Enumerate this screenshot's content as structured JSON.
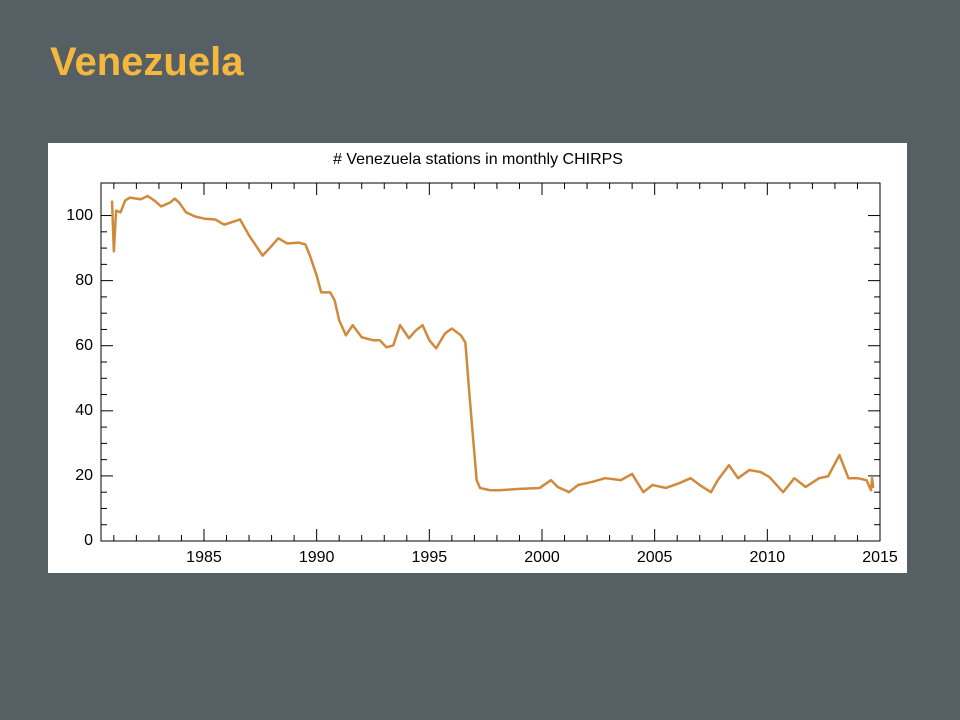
{
  "title": "Venezuela",
  "chart_data": {
    "type": "line",
    "title": "# Venezuela stations in monthly CHIRPS",
    "xlim": [
      1980.43,
      2015
    ],
    "xticks": [
      1985,
      1990,
      1995,
      2000,
      2005,
      2010,
      2015
    ],
    "ylim": [
      0,
      110
    ],
    "yticks": [
      0,
      20,
      40,
      60,
      80,
      100
    ],
    "grid": false,
    "series": [
      {
        "name": null,
        "color": "#d08a3c",
        "x": [
          1980.92,
          1981.0,
          1981.1,
          1981.3,
          1981.5,
          1981.7,
          1982.2,
          1982.5,
          1982.8,
          1983.1,
          1983.5,
          1983.7,
          1983.9,
          1984.2,
          1984.6,
          1985.05,
          1985.5,
          1985.9,
          1986.6,
          1987.0,
          1987.6,
          1987.9,
          1988.3,
          1988.7,
          1989.2,
          1989.5,
          1989.7,
          1990.0,
          1990.2,
          1990.6,
          1990.8,
          1991.0,
          1991.3,
          1991.6,
          1992.0,
          1992.5,
          1992.8,
          1993.1,
          1993.4,
          1993.7,
          1994.1,
          1994.4,
          1994.7,
          1995.0,
          1995.3,
          1995.7,
          1996.0,
          1996.4,
          1996.6,
          1996.8,
          1997.1,
          1997.25,
          1997.7,
          1998.1,
          1999.0,
          1999.9,
          2000.4,
          2000.7,
          2001.2,
          2001.6,
          2002.2,
          2002.8,
          2003.5,
          2004.0,
          2004.5,
          2004.9,
          2005.5,
          2006.1,
          2006.6,
          2007.0,
          2007.5,
          2007.8,
          2008.3,
          2008.7,
          2009.2,
          2009.7,
          2010.1,
          2010.7,
          2011.2,
          2011.7,
          2012.3,
          2012.7,
          2013.2,
          2013.6,
          2014.0,
          2014.4,
          2014.6,
          2014.65,
          2014.7
        ],
        "values": [
          104.6,
          89,
          101.5,
          101,
          104.6,
          105.5,
          105,
          106,
          104.6,
          102.8,
          104,
          105.2,
          104,
          101,
          99.7,
          99,
          98.8,
          97.2,
          98.8,
          93.9,
          87.7,
          89.9,
          93,
          91.4,
          91.7,
          91.1,
          87.7,
          81.6,
          76.4,
          76.4,
          73.9,
          67.8,
          63.2,
          66.3,
          62.6,
          61.7,
          61.7,
          59.5,
          60.1,
          66.3,
          62.3,
          64.7,
          66.3,
          61.7,
          59.2,
          63.8,
          65.3,
          63.2,
          61,
          43.3,
          18.7,
          16.3,
          15.6,
          15.6,
          16,
          16.3,
          18.7,
          16.6,
          15,
          17.2,
          18.1,
          19.3,
          18.7,
          20.6,
          15,
          17.2,
          16.3,
          17.8,
          19.3,
          17.2,
          15,
          18.7,
          23.3,
          19.3,
          21.8,
          21.2,
          19.6,
          15,
          19.3,
          16.6,
          19.3,
          19.9,
          26.4,
          19.3,
          19.3,
          18.7,
          15.6,
          19.3,
          16.3
        ]
      }
    ]
  }
}
